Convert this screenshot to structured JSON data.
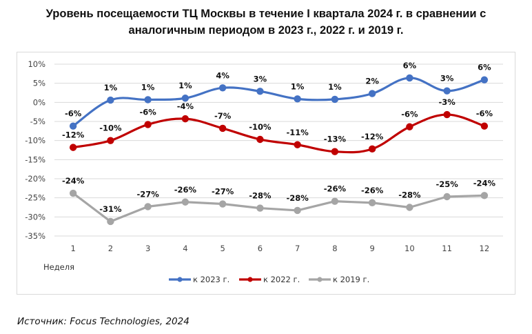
{
  "title": {
    "line1": "Уровень посещаемости  ТЦ Москвы в течение I квартала 2024 г. в сравнении с",
    "line2": "аналогичным  периодом в 2023 г., 2022 г. и 2019 г."
  },
  "source": "Источник: Focus Technologies, 2024",
  "chart_data": {
    "type": "line",
    "title": "Уровень посещаемости  ТЦ Москвы в течение I квартала 2024 г. в сравнении с аналогичным  периодом в 2023 г., 2022 г. и 2019 г.",
    "xlabel": "Неделя",
    "ylabel": "",
    "categories": [
      "1",
      "2",
      "3",
      "4",
      "5",
      "6",
      "7",
      "8",
      "9",
      "10",
      "11",
      "12"
    ],
    "ylim": [
      -35,
      10
    ],
    "yticks": [
      10,
      5,
      0,
      -5,
      -10,
      -15,
      -20,
      -25,
      -30,
      -35
    ],
    "ytick_labels": [
      "10%",
      "5%",
      "0%",
      "-5%",
      "-10%",
      "-15%",
      "-20%",
      "-25%",
      "-30%",
      "-35%"
    ],
    "grid": true,
    "legend_position": "bottom",
    "series": [
      {
        "name": "к 2023 г.",
        "color": "#4472c4",
        "smooth": true,
        "values": [
          -6.2,
          0.6,
          0.7,
          1.1,
          3.8,
          2.9,
          0.9,
          0.8,
          2.3,
          6.4,
          3.0,
          5.9
        ],
        "labels": [
          "-6%",
          "1%",
          "1%",
          "1%",
          "4%",
          "3%",
          "1%",
          "1%",
          "2%",
          "6%",
          "3%",
          "6%"
        ],
        "label_pos": "above"
      },
      {
        "name": "к 2022 г.",
        "color": "#c00000",
        "smooth": true,
        "values": [
          -11.8,
          -10.0,
          -5.8,
          -4.3,
          -6.8,
          -9.7,
          -11.1,
          -12.9,
          -12.2,
          -6.4,
          -3.2,
          -6.2
        ],
        "labels": [
          "-12%",
          "-10%",
          "-6%",
          "-4%",
          "-7%",
          "-10%",
          "-11%",
          "-13%",
          "-12%",
          "-6%",
          "-3%",
          "-6%"
        ],
        "label_pos": "above"
      },
      {
        "name": "к 2019 г.",
        "color": "#a5a5a5",
        "smooth": false,
        "values": [
          -23.8,
          -31.2,
          -27.3,
          -26.1,
          -26.6,
          -27.7,
          -28.3,
          -25.9,
          -26.3,
          -27.5,
          -24.7,
          -24.4
        ],
        "labels": [
          "-24%",
          "-31%",
          "-27%",
          "-26%",
          "-27%",
          "-28%",
          "-28%",
          "-26%",
          "-26%",
          "-28%",
          "-25%",
          "-24%"
        ],
        "label_pos": "above"
      }
    ]
  }
}
